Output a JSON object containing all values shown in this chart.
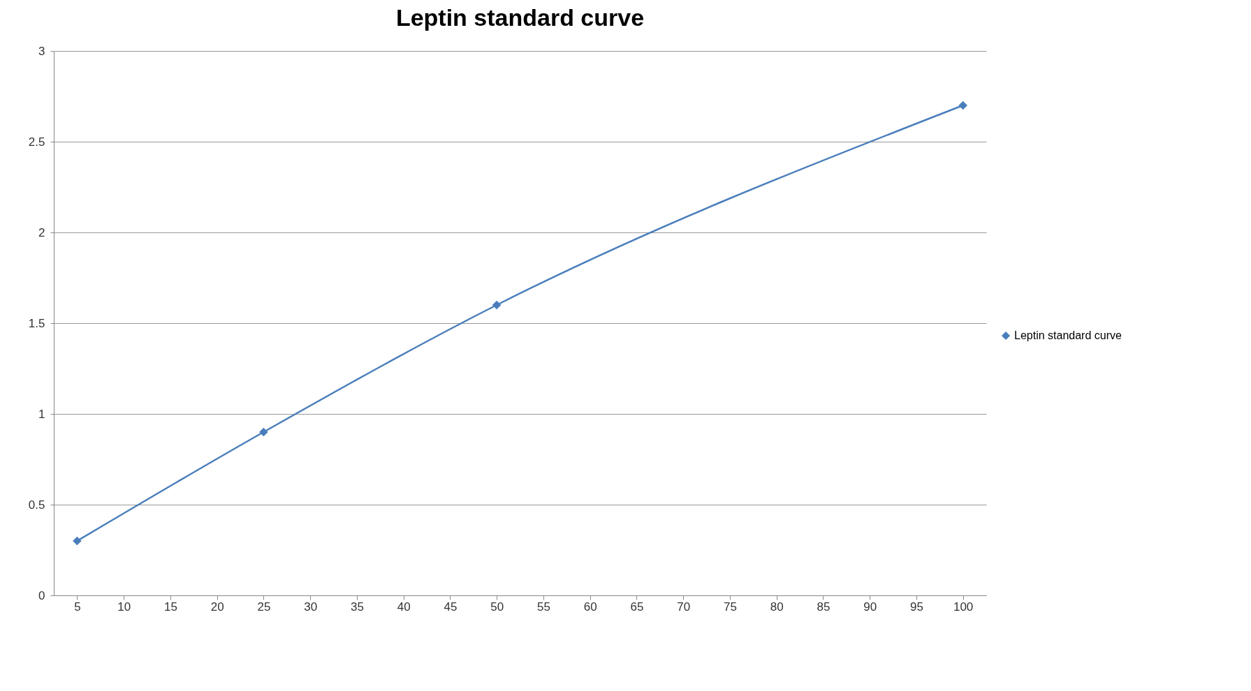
{
  "chart_data": {
    "type": "line",
    "title": "Leptin standard curve",
    "x": [
      5,
      25,
      50,
      100
    ],
    "series": [
      {
        "name": "Leptin standard curve",
        "color": "#4a7ebb",
        "values": [
          0.3,
          0.9,
          1.6,
          2.7
        ]
      }
    ],
    "xlim": [
      2.5,
      102.5
    ],
    "xticks": [
      5,
      10,
      15,
      20,
      25,
      30,
      35,
      40,
      45,
      50,
      55,
      60,
      65,
      70,
      75,
      80,
      85,
      90,
      95,
      100
    ],
    "ylim": [
      0,
      3
    ],
    "yticks": [
      0,
      0.5,
      1,
      1.5,
      2,
      2.5,
      3
    ],
    "grid": "y",
    "legend": "right",
    "marker": "diamond",
    "line_style": "solid"
  }
}
